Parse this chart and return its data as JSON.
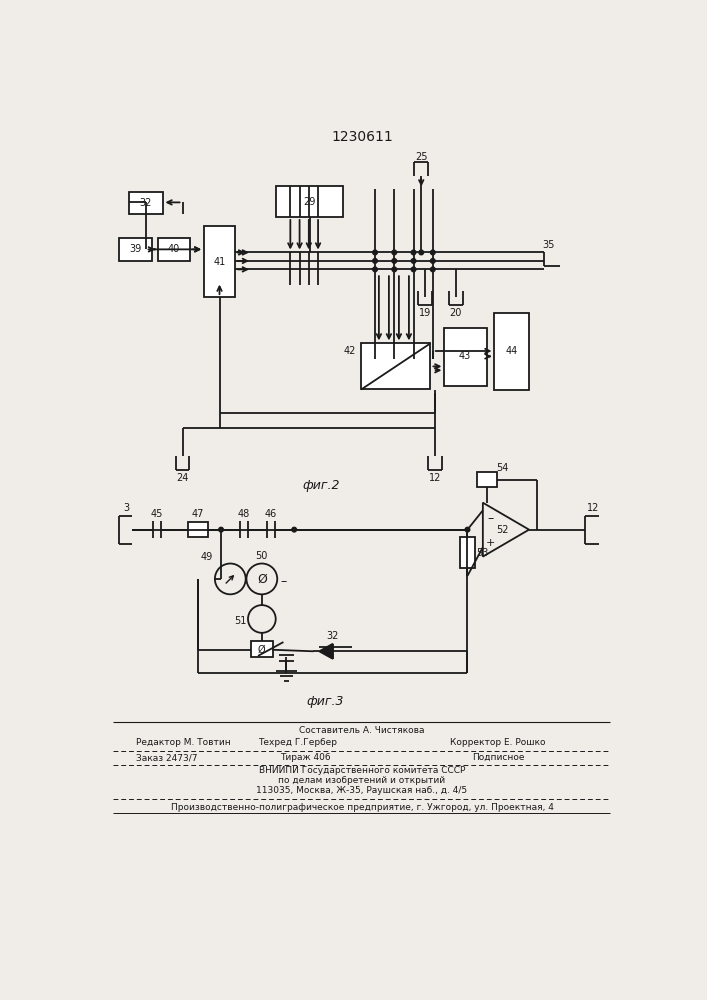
{
  "title": "1230611",
  "fig2_label": "фиг.2",
  "fig3_label": "фиг.3",
  "bg_color": "#f0ede8",
  "line_color": "#1a1a1a",
  "footer_text": [
    [
      "Составитель А. Чистякова",
      353,
      793,
      "center"
    ],
    [
      "Редактор М. Товтин",
      60,
      808,
      "left"
    ],
    [
      "Техред Г.Гербер",
      270,
      808,
      "center"
    ],
    [
      "Корректор Е. Рошко",
      530,
      808,
      "center"
    ],
    [
      "Заказ 2473/7",
      60,
      828,
      "left"
    ],
    [
      "Тираж 406",
      280,
      828,
      "center"
    ],
    [
      "Подписное",
      530,
      828,
      "center"
    ],
    [
      "ВНИИПИ Государственного комитета СССР",
      353,
      845,
      "center"
    ],
    [
      "по делам изобретений и открытий",
      353,
      858,
      "center"
    ],
    [
      "113035, Москва, Ж-35, Раушская наб., д. 4/5",
      353,
      871,
      "center"
    ],
    [
      "Производственно-полиграфическое предприятие, г. Ужгород, ул. Проектная, 4",
      353,
      893,
      "center"
    ]
  ]
}
